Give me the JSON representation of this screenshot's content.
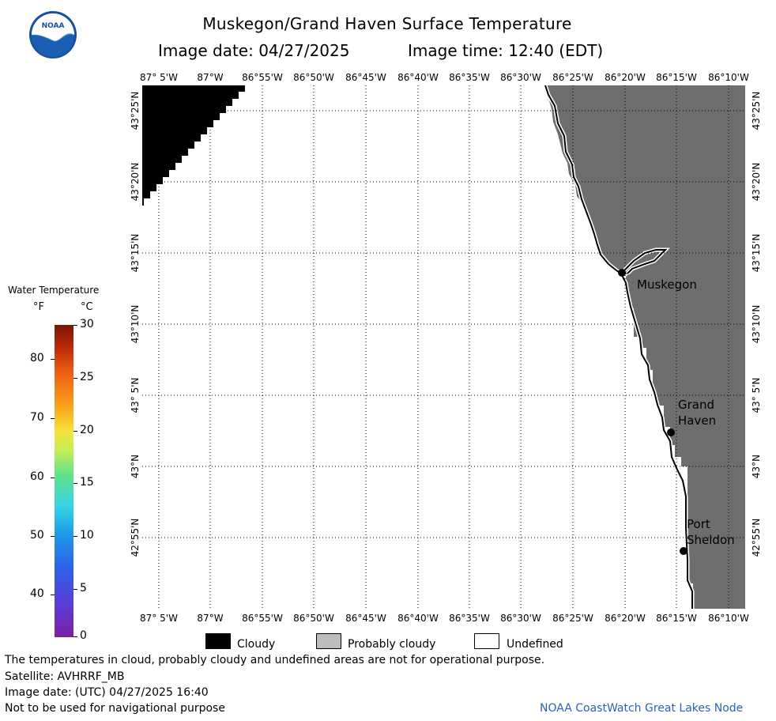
{
  "title": "Muskegon/Grand Haven Surface Temperature",
  "image_date_label": "Image date: 04/27/2025",
  "image_time_label": "Image time: 12:40 (EDT)",
  "logo_text": "NOAA",
  "lon_labels": [
    "87° 5'W",
    "87°W",
    "86°55'W",
    "86°50'W",
    "86°45'W",
    "86°40'W",
    "86°35'W",
    "86°30'W",
    "86°25'W",
    "86°20'W",
    "86°15'W",
    "86°10'W"
  ],
  "lat_labels": [
    "43°25'N",
    "43°20'N",
    "43°15'N",
    "43°10'N",
    "43° 5'N",
    "43°N",
    "42°55'N"
  ],
  "places": {
    "muskegon": "Muskegon",
    "grand_haven_1": "Grand",
    "grand_haven_2": "Haven",
    "port_sheldon_1": "Port",
    "port_sheldon_2": "Sheldon"
  },
  "colorbar": {
    "title": "Water Temperature",
    "unit_f": "°F",
    "unit_c": "°C",
    "f_ticks": [
      "80",
      "70",
      "60",
      "50",
      "40"
    ],
    "c_ticks": [
      "30",
      "25",
      "20",
      "15",
      "10",
      "5",
      "0"
    ]
  },
  "legend": {
    "cloudy": "Cloudy",
    "probably_cloudy": "Probably cloudy",
    "undefined": "Undefined",
    "colors": {
      "cloudy": "#000000",
      "probably_cloudy": "#bdbdbd",
      "undefined": "#ffffff",
      "land": "#6e6e6e"
    }
  },
  "footer": {
    "line1": "The temperatures in cloud, probably cloudy and undefined areas are not for operational purpose.",
    "line2": "Satellite: AVHRRF_MB",
    "line3": "Image date: (UTC) 04/27/2025  16:40",
    "line4": "Not to be used for navigational purpose",
    "credit": "NOAA CoastWatch Great Lakes Node"
  }
}
